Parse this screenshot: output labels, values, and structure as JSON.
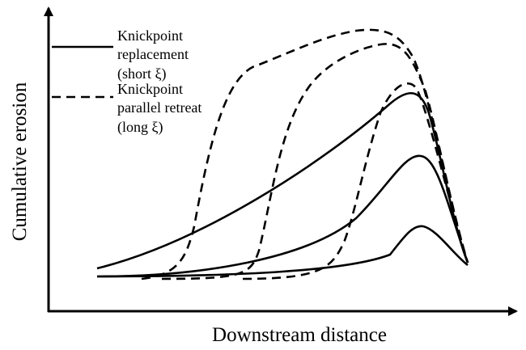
{
  "axes": {
    "y_label": "Cumulative erosion",
    "x_label": "Downstream distance"
  },
  "legend": [
    {
      "style": "solid",
      "lines": [
        "Knickpoint",
        "replacement",
        "(short ξ)"
      ]
    },
    {
      "style": "dashed",
      "lines": [
        "Knickpoint",
        "parallel retreat",
        "(long ξ)"
      ]
    }
  ]
}
